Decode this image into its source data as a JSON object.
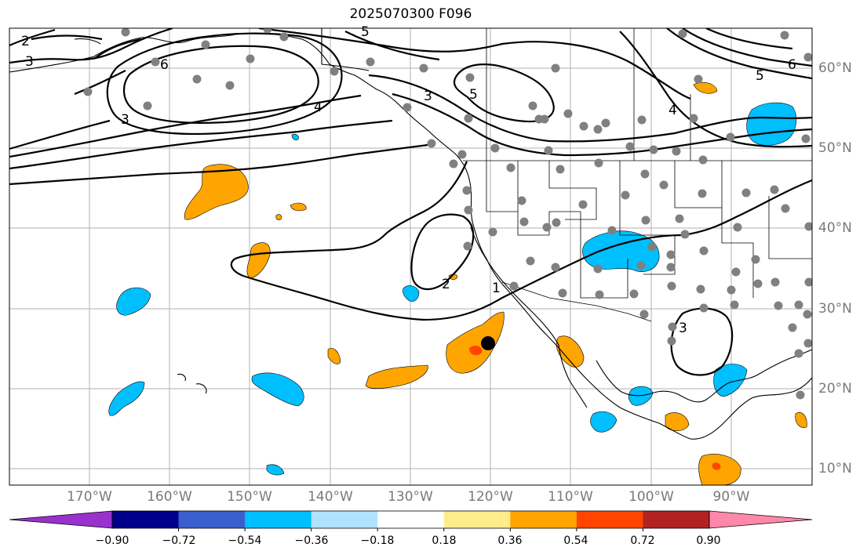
{
  "title": "2025070300 F096",
  "map": {
    "longitude_labels": [
      "170°W",
      "160°W",
      "150°W",
      "140°W",
      "130°W",
      "120°W",
      "110°W",
      "100°W",
      "90°W"
    ],
    "latitude_labels": [
      "60°N",
      "50°N",
      "40°N",
      "30°N",
      "20°N",
      "10°N"
    ],
    "contour_labels": [
      "2",
      "3",
      "6",
      "3",
      "5",
      "4",
      "3",
      "5",
      "6",
      "5",
      "4",
      "3",
      "2",
      "1"
    ],
    "colors": {
      "land_line": "#000000",
      "grid": "#b0b0b0",
      "station": "#808080",
      "positive": "#ffa500",
      "negative": "#00bfff",
      "strong_positive": "#ff4500",
      "marker": "#000000"
    }
  },
  "colorbar": {
    "colors": [
      "#9932cc",
      "#00008b",
      "#3a5fcd",
      "#00bfff",
      "#b0e2ff",
      "#ffffff",
      "#ffec8b",
      "#ffa500",
      "#ff4500",
      "#b22222",
      "#ff88aa"
    ],
    "tick_labels": [
      "−0.90",
      "−0.72",
      "−0.54",
      "−0.36",
      "−0.18",
      "0.18",
      "0.36",
      "0.54",
      "0.72",
      "0.90"
    ]
  }
}
